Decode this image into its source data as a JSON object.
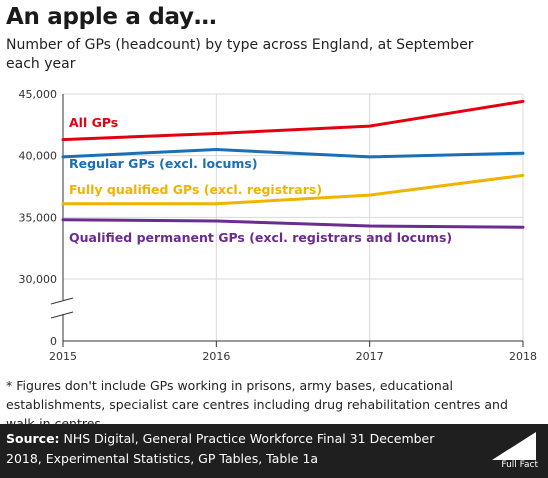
{
  "title": "An apple a day…",
  "subtitle": "Number of GPs (headcount) by type across England, at September each year",
  "footnote": "* Figures don't include GPs working in prisons, army bases, educational establishments, specialist care centres including drug rehabilitation centres and walk-in centres",
  "footer": {
    "source_label": "Source:",
    "source_text": " NHS Digital, General Practice Workforce Final 31 December 2018, Experimental Statistics, GP Tables, Table 1a",
    "logo_text": "Full Fact"
  },
  "colors": {
    "all_gps": "#e3000f",
    "regular_gps": "#1a6fb5",
    "fully_qualified": "#f0b400",
    "permanent": "#6b2c91",
    "grid": "#d9d9d9",
    "axis": "#333333"
  },
  "chart_data": {
    "type": "line",
    "x": [
      "2015",
      "2016",
      "2017",
      "2018"
    ],
    "yticks": [
      "0",
      "30,000",
      "35,000",
      "40,000",
      "45,000"
    ],
    "axis_break": true,
    "ylim": [
      0,
      45000
    ],
    "grid": true,
    "series": [
      {
        "name": "All GPs",
        "key": "all_gps",
        "values": [
          41300,
          41800,
          42400,
          44400
        ]
      },
      {
        "name": "Regular GPs (excl. locums)",
        "key": "regular_gps",
        "values": [
          39900,
          40500,
          39900,
          40200
        ]
      },
      {
        "name": "Fully qualified GPs (excl. registrars)",
        "key": "fully_qualified",
        "values": [
          36100,
          36100,
          36800,
          38400
        ]
      },
      {
        "name": "Qualified permanent GPs (excl. registrars and locums)",
        "key": "permanent",
        "values": [
          34800,
          34700,
          34300,
          34200
        ]
      }
    ]
  }
}
